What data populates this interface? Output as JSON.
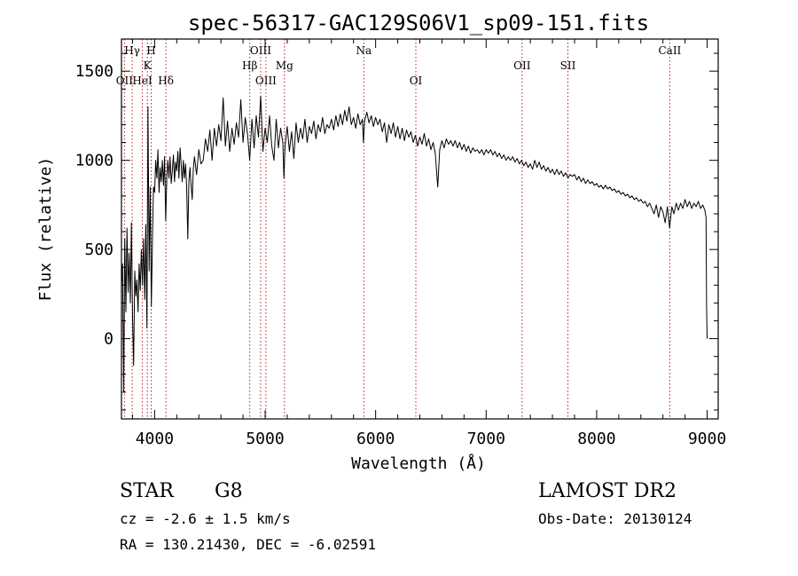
{
  "chart_data": {
    "type": "line",
    "title": "spec-56317-GAC129S06V1_sp09-151.fits",
    "xlabel": "Wavelength (Å)",
    "ylabel": "Flux (relative)",
    "xlim": [
      3700,
      9100
    ],
    "ylim": [
      -450,
      1680
    ],
    "xticks": [
      4000,
      5000,
      6000,
      7000,
      8000,
      9000
    ],
    "yticks": [
      0,
      500,
      1000,
      1500
    ],
    "line_color": "#000000",
    "marker_color": "#b22222",
    "spectral_lines": [
      {
        "name": "OII",
        "wavelength": 3727,
        "row": 3
      },
      {
        "name": "Hγ",
        "wavelength": 3797,
        "row": 1
      },
      {
        "name": "HeI",
        "wavelength": 3889,
        "row": 3
      },
      {
        "name": "K",
        "wavelength": 3934,
        "row": 2
      },
      {
        "name": "H",
        "wavelength": 3969,
        "row": 1
      },
      {
        "name": "Hδ",
        "wavelength": 4102,
        "row": 3
      },
      {
        "name": "Hβ",
        "wavelength": 4861,
        "row": 2
      },
      {
        "name": "OIII",
        "wavelength": 4959,
        "row": 1
      },
      {
        "name": "OIII",
        "wavelength": 5007,
        "row": 3
      },
      {
        "name": "Mg",
        "wavelength": 5175,
        "row": 2
      },
      {
        "name": "Na",
        "wavelength": 5893,
        "row": 1
      },
      {
        "name": "OI",
        "wavelength": 6364,
        "row": 3
      },
      {
        "name": "OII",
        "wavelength": 7325,
        "row": 2
      },
      {
        "name": "SII",
        "wavelength": 7740,
        "row": 2
      },
      {
        "name": "CaII",
        "wavelength": 8662,
        "row": 1
      }
    ],
    "spectrum": [
      [
        3700,
        300
      ],
      [
        3710,
        420
      ],
      [
        3720,
        -300
      ],
      [
        3730,
        560
      ],
      [
        3740,
        150
      ],
      [
        3750,
        620
      ],
      [
        3760,
        260
      ],
      [
        3770,
        480
      ],
      [
        3780,
        200
      ],
      [
        3790,
        650
      ],
      [
        3800,
        120
      ],
      [
        3810,
        -150
      ],
      [
        3820,
        380
      ],
      [
        3830,
        240
      ],
      [
        3840,
        330
      ],
      [
        3850,
        150
      ],
      [
        3860,
        420
      ],
      [
        3870,
        270
      ],
      [
        3880,
        500
      ],
      [
        3890,
        300
      ],
      [
        3900,
        560
      ],
      [
        3910,
        220
      ],
      [
        3920,
        640
      ],
      [
        3930,
        60
      ],
      [
        3940,
        1300
      ],
      [
        3950,
        380
      ],
      [
        3960,
        850
      ],
      [
        3970,
        180
      ],
      [
        3980,
        550
      ],
      [
        3990,
        850
      ],
      [
        4000,
        820
      ],
      [
        4010,
        1000
      ],
      [
        4020,
        900
      ],
      [
        4030,
        1060
      ],
      [
        4040,
        820
      ],
      [
        4050,
        960
      ],
      [
        4060,
        880
      ],
      [
        4070,
        1000
      ],
      [
        4080,
        860
      ],
      [
        4090,
        1020
      ],
      [
        4100,
        660
      ],
      [
        4110,
        900
      ],
      [
        4120,
        1000
      ],
      [
        4130,
        900
      ],
      [
        4140,
        1020
      ],
      [
        4150,
        870
      ],
      [
        4160,
        940
      ],
      [
        4170,
        1030
      ],
      [
        4180,
        880
      ],
      [
        4190,
        990
      ],
      [
        4200,
        940
      ],
      [
        4210,
        1050
      ],
      [
        4220,
        900
      ],
      [
        4230,
        1070
      ],
      [
        4240,
        980
      ],
      [
        4250,
        880
      ],
      [
        4260,
        1000
      ],
      [
        4270,
        900
      ],
      [
        4280,
        980
      ],
      [
        4290,
        850
      ],
      [
        4300,
        560
      ],
      [
        4310,
        880
      ],
      [
        4320,
        960
      ],
      [
        4330,
        860
      ],
      [
        4340,
        780
      ],
      [
        4350,
        950
      ],
      [
        4360,
        1020
      ],
      [
        4380,
        920
      ],
      [
        4400,
        1060
      ],
      [
        4420,
        980
      ],
      [
        4440,
        1000
      ],
      [
        4460,
        1120
      ],
      [
        4480,
        1050
      ],
      [
        4500,
        1170
      ],
      [
        4520,
        1000
      ],
      [
        4540,
        1180
      ],
      [
        4560,
        1080
      ],
      [
        4580,
        1200
      ],
      [
        4600,
        1110
      ],
      [
        4620,
        1350
      ],
      [
        4640,
        1080
      ],
      [
        4660,
        1220
      ],
      [
        4680,
        1050
      ],
      [
        4700,
        1180
      ],
      [
        4720,
        1090
      ],
      [
        4740,
        1210
      ],
      [
        4760,
        1130
      ],
      [
        4780,
        1340
      ],
      [
        4800,
        1100
      ],
      [
        4820,
        1240
      ],
      [
        4840,
        1150
      ],
      [
        4860,
        1000
      ],
      [
        4880,
        1230
      ],
      [
        4900,
        1070
      ],
      [
        4920,
        1250
      ],
      [
        4940,
        1130
      ],
      [
        4960,
        1360
      ],
      [
        4980,
        1050
      ],
      [
        5000,
        1180
      ],
      [
        5020,
        1100
      ],
      [
        5040,
        1250
      ],
      [
        5060,
        1080
      ],
      [
        5080,
        1000
      ],
      [
        5100,
        1230
      ],
      [
        5120,
        1070
      ],
      [
        5140,
        1180
      ],
      [
        5160,
        1100
      ],
      [
        5170,
        900
      ],
      [
        5180,
        1080
      ],
      [
        5200,
        1190
      ],
      [
        5220,
        1050
      ],
      [
        5240,
        1160
      ],
      [
        5260,
        1010
      ],
      [
        5280,
        1210
      ],
      [
        5300,
        1100
      ],
      [
        5320,
        1180
      ],
      [
        5340,
        1120
      ],
      [
        5360,
        1230
      ],
      [
        5380,
        1100
      ],
      [
        5400,
        1190
      ],
      [
        5420,
        1150
      ],
      [
        5440,
        1220
      ],
      [
        5460,
        1120
      ],
      [
        5480,
        1200
      ],
      [
        5500,
        1160
      ],
      [
        5520,
        1240
      ],
      [
        5540,
        1150
      ],
      [
        5560,
        1200
      ],
      [
        5580,
        1180
      ],
      [
        5600,
        1230
      ],
      [
        5620,
        1170
      ],
      [
        5640,
        1250
      ],
      [
        5660,
        1190
      ],
      [
        5680,
        1260
      ],
      [
        5700,
        1200
      ],
      [
        5720,
        1280
      ],
      [
        5740,
        1220
      ],
      [
        5760,
        1300
      ],
      [
        5780,
        1200
      ],
      [
        5800,
        1240
      ],
      [
        5820,
        1180
      ],
      [
        5840,
        1260
      ],
      [
        5860,
        1200
      ],
      [
        5880,
        1230
      ],
      [
        5890,
        1100
      ],
      [
        5900,
        1220
      ],
      [
        5920,
        1270
      ],
      [
        5940,
        1210
      ],
      [
        5960,
        1250
      ],
      [
        5980,
        1190
      ],
      [
        6000,
        1240
      ],
      [
        6020,
        1200
      ],
      [
        6040,
        1230
      ],
      [
        6060,
        1160
      ],
      [
        6080,
        1210
      ],
      [
        6100,
        1100
      ],
      [
        6120,
        1200
      ],
      [
        6140,
        1150
      ],
      [
        6160,
        1210
      ],
      [
        6180,
        1130
      ],
      [
        6200,
        1190
      ],
      [
        6220,
        1120
      ],
      [
        6240,
        1180
      ],
      [
        6260,
        1110
      ],
      [
        6280,
        1170
      ],
      [
        6300,
        1130
      ],
      [
        6320,
        1160
      ],
      [
        6340,
        1100
      ],
      [
        6360,
        1140
      ],
      [
        6380,
        1080
      ],
      [
        6400,
        1130
      ],
      [
        6420,
        1090
      ],
      [
        6440,
        1150
      ],
      [
        6460,
        1080
      ],
      [
        6480,
        1120
      ],
      [
        6500,
        1060
      ],
      [
        6520,
        1100
      ],
      [
        6540,
        1040
      ],
      [
        6562,
        850
      ],
      [
        6580,
        1060
      ],
      [
        6600,
        1110
      ],
      [
        6620,
        1070
      ],
      [
        6640,
        1120
      ],
      [
        6660,
        1090
      ],
      [
        6680,
        1110
      ],
      [
        6700,
        1080
      ],
      [
        6720,
        1110
      ],
      [
        6740,
        1070
      ],
      [
        6760,
        1100
      ],
      [
        6780,
        1060
      ],
      [
        6800,
        1090
      ],
      [
        6820,
        1050
      ],
      [
        6840,
        1080
      ],
      [
        6860,
        1040
      ],
      [
        6880,
        1070
      ],
      [
        6900,
        1050
      ],
      [
        6920,
        1060
      ],
      [
        6940,
        1040
      ],
      [
        6960,
        1060
      ],
      [
        6980,
        1030
      ],
      [
        7000,
        1060
      ],
      [
        7020,
        1040
      ],
      [
        7040,
        1060
      ],
      [
        7060,
        1030
      ],
      [
        7080,
        1050
      ],
      [
        7100,
        1020
      ],
      [
        7120,
        1040
      ],
      [
        7140,
        1010
      ],
      [
        7160,
        1030
      ],
      [
        7180,
        1000
      ],
      [
        7200,
        1020
      ],
      [
        7220,
        1000
      ],
      [
        7240,
        1020
      ],
      [
        7260,
        990
      ],
      [
        7280,
        1010
      ],
      [
        7300,
        980
      ],
      [
        7320,
        1000
      ],
      [
        7340,
        970
      ],
      [
        7360,
        990
      ],
      [
        7380,
        960
      ],
      [
        7400,
        980
      ],
      [
        7420,
        950
      ],
      [
        7440,
        1000
      ],
      [
        7460,
        960
      ],
      [
        7480,
        990
      ],
      [
        7500,
        950
      ],
      [
        7520,
        970
      ],
      [
        7540,
        940
      ],
      [
        7560,
        960
      ],
      [
        7580,
        930
      ],
      [
        7600,
        950
      ],
      [
        7620,
        920
      ],
      [
        7640,
        950
      ],
      [
        7660,
        920
      ],
      [
        7680,
        940
      ],
      [
        7700,
        910
      ],
      [
        7720,
        930
      ],
      [
        7740,
        900
      ],
      [
        7760,
        920
      ],
      [
        7780,
        910
      ],
      [
        7800,
        920
      ],
      [
        7820,
        890
      ],
      [
        7840,
        910
      ],
      [
        7860,
        880
      ],
      [
        7880,
        900
      ],
      [
        7900,
        870
      ],
      [
        7920,
        890
      ],
      [
        7940,
        870
      ],
      [
        7960,
        880
      ],
      [
        7980,
        860
      ],
      [
        8000,
        870
      ],
      [
        8020,
        850
      ],
      [
        8040,
        860
      ],
      [
        8060,
        840
      ],
      [
        8080,
        860
      ],
      [
        8100,
        840
      ],
      [
        8120,
        850
      ],
      [
        8140,
        830
      ],
      [
        8160,
        840
      ],
      [
        8180,
        820
      ],
      [
        8200,
        830
      ],
      [
        8220,
        810
      ],
      [
        8240,
        820
      ],
      [
        8260,
        800
      ],
      [
        8280,
        810
      ],
      [
        8300,
        790
      ],
      [
        8320,
        800
      ],
      [
        8340,
        780
      ],
      [
        8360,
        790
      ],
      [
        8380,
        770
      ],
      [
        8400,
        780
      ],
      [
        8420,
        760
      ],
      [
        8440,
        770
      ],
      [
        8460,
        740
      ],
      [
        8480,
        760
      ],
      [
        8500,
        730
      ],
      [
        8520,
        700
      ],
      [
        8540,
        750
      ],
      [
        8560,
        680
      ],
      [
        8580,
        740
      ],
      [
        8600,
        710
      ],
      [
        8620,
        650
      ],
      [
        8640,
        740
      ],
      [
        8660,
        620
      ],
      [
        8680,
        740
      ],
      [
        8700,
        700
      ],
      [
        8720,
        760
      ],
      [
        8740,
        720
      ],
      [
        8760,
        760
      ],
      [
        8780,
        730
      ],
      [
        8800,
        780
      ],
      [
        8820,
        740
      ],
      [
        8840,
        770
      ],
      [
        8860,
        730
      ],
      [
        8880,
        760
      ],
      [
        8900,
        740
      ],
      [
        8920,
        770
      ],
      [
        8940,
        730
      ],
      [
        8960,
        750
      ],
      [
        8980,
        720
      ],
      [
        8990,
        680
      ],
      [
        8995,
        180
      ],
      [
        9000,
        0
      ]
    ]
  },
  "info": {
    "object_class": "STAR",
    "subclass": "G8",
    "survey": "LAMOST DR2",
    "cz": "cz = -2.6 ± 1.5 km/s",
    "obs_date": "Obs-Date: 20130124",
    "coords": "RA = 130.21430, DEC =  -6.02591"
  }
}
